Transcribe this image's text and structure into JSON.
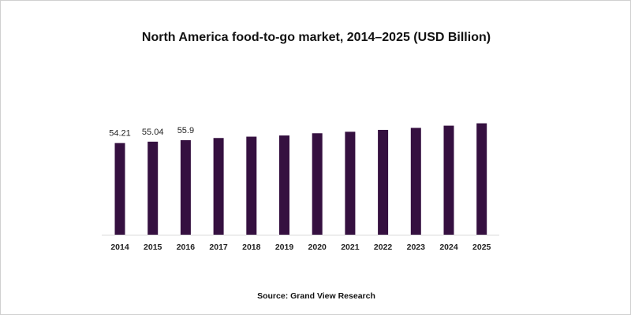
{
  "chart_data": {
    "type": "bar",
    "title": "North America food-to-go market, 2014–2025 (USD Billion)",
    "source": "Source: Grand View Research",
    "categories": [
      "2014",
      "2015",
      "2016",
      "2017",
      "2018",
      "2019",
      "2020",
      "2021",
      "2022",
      "2023",
      "2024",
      "2025"
    ],
    "values": [
      54.21,
      55.04,
      55.9,
      57.2,
      58.0,
      58.7,
      60.0,
      60.9,
      62.0,
      63.2,
      64.5,
      65.9
    ],
    "data_labels": [
      "54.21",
      "55.04",
      "55.9",
      null,
      null,
      null,
      null,
      null,
      null,
      null,
      null,
      null
    ],
    "xlabel": "",
    "ylabel": "",
    "ylim": [
      0,
      70
    ],
    "grid": false,
    "y_axis_visible": false,
    "bar_color": "#351040"
  }
}
